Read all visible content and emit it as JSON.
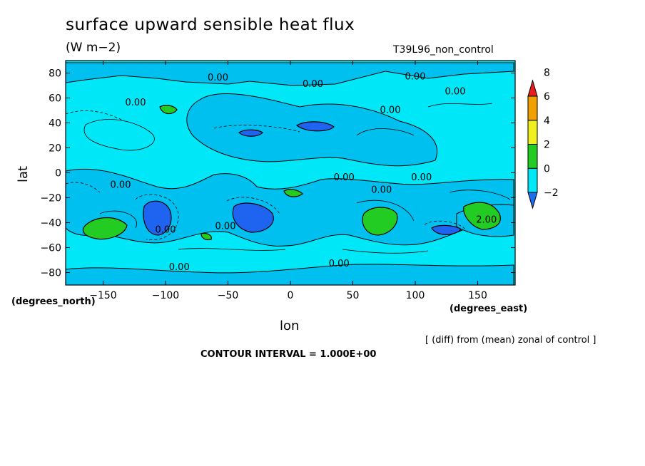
{
  "chart_data": {
    "type": "contour",
    "title": "surface upward sensible heat flux",
    "units": "(W m−2)",
    "experiment": "T39L96_non_control",
    "xlabel": "lon",
    "ylabel": "lat",
    "x_unit_label": "(degrees_east)",
    "y_unit_label": "(degrees_north)",
    "note": "[ (diff) from (mean) zonal of control ]",
    "contour_interval": "CONTOUR INTERVAL = 1.000E+00",
    "xlim": [
      -180,
      180
    ],
    "ylim": [
      -90,
      90
    ],
    "x_ticks": [
      -150,
      -100,
      -50,
      0,
      50,
      100,
      150
    ],
    "x_tick_labels": [
      "−150",
      "−100",
      "−50",
      "0",
      "50",
      "100",
      "150"
    ],
    "y_ticks": [
      80,
      60,
      40,
      20,
      0,
      -20,
      -40,
      -60,
      -80
    ],
    "y_tick_labels": [
      "80",
      "60",
      "40",
      "20",
      "0",
      "−20",
      "−40",
      "−60",
      "−80"
    ],
    "colorbar": {
      "levels": [
        -2,
        0,
        2,
        4,
        6,
        8
      ],
      "level_labels": [
        "−2",
        "0",
        "2",
        "4",
        "6",
        "8"
      ],
      "colors": [
        "#1e6ef0",
        "#00c8f0",
        "#00e8f8",
        "#22cc22",
        "#f0f020",
        "#f0a000",
        "#e81c1c"
      ],
      "band_colors": [
        "#1e6ef0",
        "#00e8f8",
        "#22cc22",
        "#f0f020",
        "#f0a000",
        "#e81c1c"
      ]
    },
    "contour_labels": [
      {
        "text": "0.00",
        "lon": -58,
        "lat": 74
      },
      {
        "text": "0.00",
        "lon": 18,
        "lat": 69
      },
      {
        "text": "0.00",
        "lon": 100,
        "lat": 75
      },
      {
        "text": "0.00",
        "lon": 132,
        "lat": 63
      },
      {
        "text": "0.00",
        "lon": -124,
        "lat": 54
      },
      {
        "text": "0.00",
        "lon": 80,
        "lat": 48
      },
      {
        "text": "0.00",
        "lon": -136,
        "lat": -12
      },
      {
        "text": "0.00",
        "lon": 43,
        "lat": -6
      },
      {
        "text": "0.00",
        "lon": 73,
        "lat": -16
      },
      {
        "text": "0.00",
        "lon": 105,
        "lat": -6
      },
      {
        "text": "0.00",
        "lon": -52,
        "lat": -45
      },
      {
        "text": "0.00",
        "lon": -100,
        "lat": -48
      },
      {
        "text": "2.00",
        "lon": 157,
        "lat": -40
      },
      {
        "text": "0.00",
        "lon": -89,
        "lat": -78
      },
      {
        "text": "0.00",
        "lon": 39,
        "lat": -75
      }
    ]
  }
}
